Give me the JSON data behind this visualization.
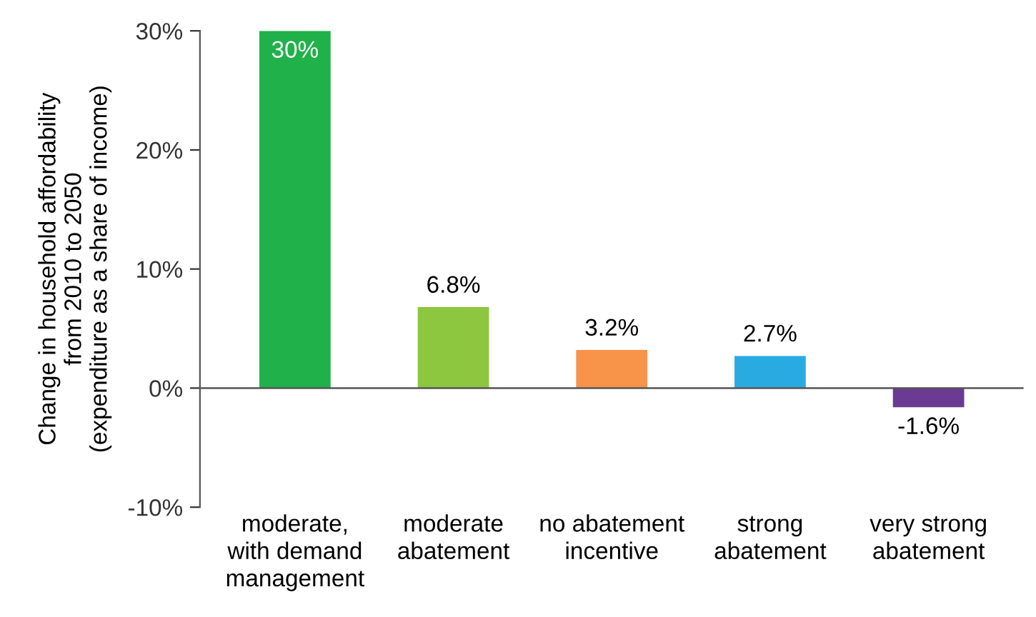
{
  "chart_data": {
    "type": "bar",
    "ylabel": "Change in household affordability\nfrom 2010 to 2050\n(expenditure as a share of income)",
    "categories": [
      "moderate,\nwith demand\nmanagement",
      "moderate\nabatement",
      "no abatement\nincentive",
      "strong\nabatement",
      "very strong\nabatement"
    ],
    "values": [
      30,
      6.8,
      3.2,
      2.7,
      -1.6
    ],
    "colors": [
      "#21b14b",
      "#8dc63f",
      "#f7944a",
      "#29abe2",
      "#6b3a93"
    ],
    "value_labels": [
      "30%",
      "6.8%",
      "3.2%",
      "2.7%",
      "-1.6%"
    ],
    "ylim": [
      -10,
      30
    ],
    "yticks": [
      {
        "value": -10,
        "label": "-10%"
      },
      {
        "value": 0,
        "label": "0%"
      },
      {
        "value": 10,
        "label": "10%"
      },
      {
        "value": 20,
        "label": "20%"
      },
      {
        "value": 30,
        "label": "30%"
      }
    ],
    "ref_lines": [
      {
        "axis": "y",
        "value": 0,
        "color": "#555555"
      }
    ],
    "grid": false,
    "legend": false
  }
}
